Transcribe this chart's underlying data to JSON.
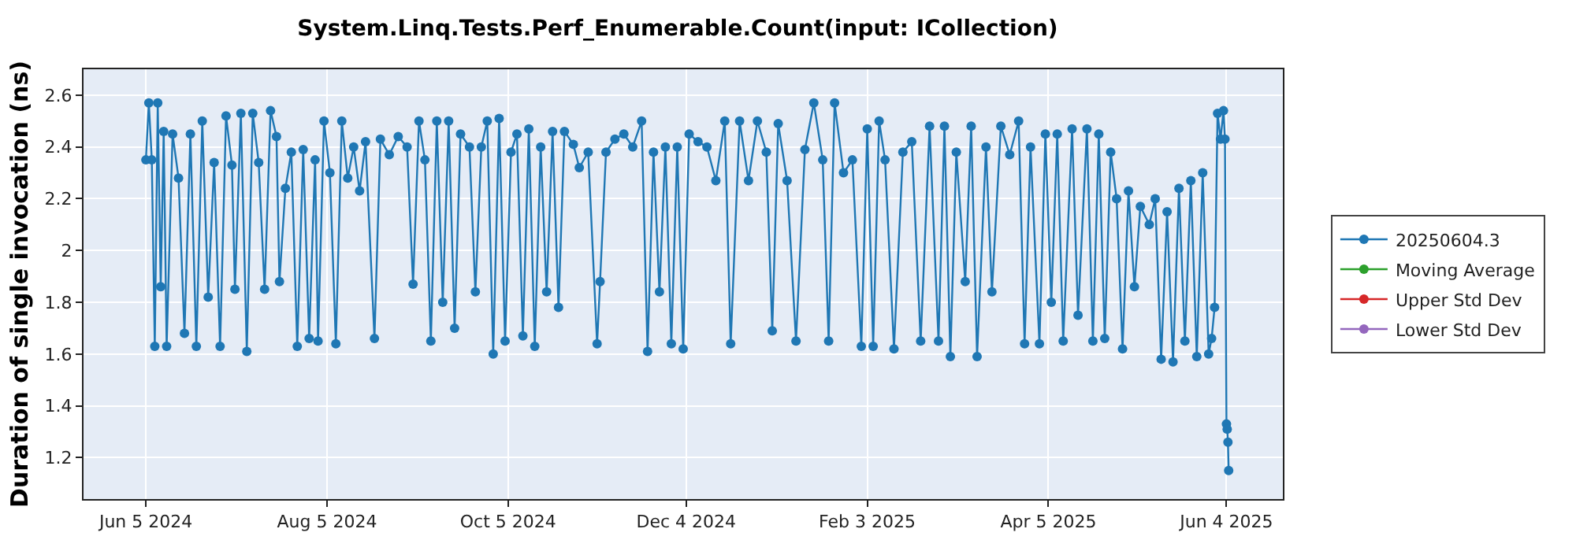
{
  "chart_data": {
    "type": "line",
    "title": "System.Linq.Tests.Perf_Enumerable.Count(input: ICollection)",
    "ylabel": "Duration of single invocation (ns)",
    "x": [
      "2024-06-05",
      "2024-06-06",
      "2024-06-07",
      "2024-06-08",
      "2024-06-09",
      "2024-06-10",
      "2024-06-11",
      "2024-06-12",
      "2024-06-14",
      "2024-06-16",
      "2024-06-18",
      "2024-06-20",
      "2024-06-22",
      "2024-06-24",
      "2024-06-26",
      "2024-06-28",
      "2024-06-30",
      "2024-07-02",
      "2024-07-04",
      "2024-07-05",
      "2024-07-07",
      "2024-07-09",
      "2024-07-11",
      "2024-07-13",
      "2024-07-15",
      "2024-07-17",
      "2024-07-19",
      "2024-07-20",
      "2024-07-22",
      "2024-07-24",
      "2024-07-26",
      "2024-07-28",
      "2024-07-30",
      "2024-08-01",
      "2024-08-02",
      "2024-08-04",
      "2024-08-06",
      "2024-08-08",
      "2024-08-10",
      "2024-08-12",
      "2024-08-14",
      "2024-08-16",
      "2024-08-18",
      "2024-08-21",
      "2024-08-23",
      "2024-08-26",
      "2024-08-29",
      "2024-09-01",
      "2024-09-03",
      "2024-09-05",
      "2024-09-07",
      "2024-09-09",
      "2024-09-11",
      "2024-09-13",
      "2024-09-15",
      "2024-09-17",
      "2024-09-19",
      "2024-09-22",
      "2024-09-24",
      "2024-09-26",
      "2024-09-28",
      "2024-09-30",
      "2024-10-02",
      "2024-10-04",
      "2024-10-06",
      "2024-10-08",
      "2024-10-10",
      "2024-10-12",
      "2024-10-14",
      "2024-10-16",
      "2024-10-18",
      "2024-10-20",
      "2024-10-22",
      "2024-10-24",
      "2024-10-27",
      "2024-10-29",
      "2024-11-01",
      "2024-11-04",
      "2024-11-05",
      "2024-11-07",
      "2024-11-10",
      "2024-11-13",
      "2024-11-16",
      "2024-11-19",
      "2024-11-21",
      "2024-11-23",
      "2024-11-25",
      "2024-11-27",
      "2024-11-29",
      "2024-12-01",
      "2024-12-03",
      "2024-12-05",
      "2024-12-08",
      "2024-12-11",
      "2024-12-14",
      "2024-12-17",
      "2024-12-19",
      "2024-12-22",
      "2024-12-25",
      "2024-12-28",
      "2024-12-31",
      "2025-01-02",
      "2025-01-04",
      "2025-01-07",
      "2025-01-10",
      "2025-01-13",
      "2025-01-16",
      "2025-01-19",
      "2025-01-21",
      "2025-01-23",
      "2025-01-26",
      "2025-01-29",
      "2025-02-01",
      "2025-02-03",
      "2025-02-05",
      "2025-02-07",
      "2025-02-09",
      "2025-02-12",
      "2025-02-15",
      "2025-02-18",
      "2025-02-21",
      "2025-02-24",
      "2025-02-27",
      "2025-03-01",
      "2025-03-03",
      "2025-03-05",
      "2025-03-08",
      "2025-03-10",
      "2025-03-12",
      "2025-03-15",
      "2025-03-17",
      "2025-03-20",
      "2025-03-23",
      "2025-03-26",
      "2025-03-28",
      "2025-03-30",
      "2025-04-02",
      "2025-04-04",
      "2025-04-06",
      "2025-04-08",
      "2025-04-10",
      "2025-04-13",
      "2025-04-15",
      "2025-04-18",
      "2025-04-20",
      "2025-04-22",
      "2025-04-24",
      "2025-04-26",
      "2025-04-28",
      "2025-04-30",
      "2025-05-02",
      "2025-05-04",
      "2025-05-06",
      "2025-05-09",
      "2025-05-11",
      "2025-05-13",
      "2025-05-15",
      "2025-05-17",
      "2025-05-19",
      "2025-05-21",
      "2025-05-23",
      "2025-05-25",
      "2025-05-27",
      "2025-05-29",
      "2025-05-30",
      "2025-05-31",
      "2025-06-01",
      "2025-06-02",
      "2025-06-03",
      "2025-06-03T12:00",
      "2025-06-04",
      "2025-06-04T06:00",
      "2025-06-04T12:00",
      "2025-06-04T18:00"
    ],
    "series": [
      {
        "name": "20250604.3",
        "color": "#1f77b4",
        "values": [
          2.35,
          2.57,
          2.35,
          1.63,
          2.57,
          1.86,
          2.46,
          1.63,
          2.45,
          2.28,
          1.68,
          2.45,
          1.63,
          2.5,
          1.82,
          2.34,
          1.63,
          2.52,
          2.33,
          1.85,
          2.53,
          1.61,
          2.53,
          2.34,
          1.85,
          2.54,
          2.44,
          1.88,
          2.24,
          2.38,
          1.63,
          2.39,
          1.66,
          2.35,
          1.65,
          2.5,
          2.3,
          1.64,
          2.5,
          2.28,
          2.4,
          2.23,
          2.42,
          1.66,
          2.43,
          2.37,
          2.44,
          2.4,
          1.87,
          2.5,
          2.35,
          1.65,
          2.5,
          1.8,
          2.5,
          1.7,
          2.45,
          2.4,
          1.84,
          2.4,
          2.5,
          1.6,
          2.51,
          1.65,
          2.38,
          2.45,
          1.67,
          2.47,
          1.63,
          2.4,
          1.84,
          2.46,
          1.78,
          2.46,
          2.41,
          2.32,
          2.38,
          1.64,
          1.88,
          2.38,
          2.43,
          2.45,
          2.4,
          2.5,
          1.61,
          2.38,
          1.84,
          2.4,
          1.64,
          2.4,
          1.62,
          2.45,
          2.42,
          2.4,
          2.27,
          2.5,
          1.64,
          2.5,
          2.27,
          2.5,
          2.38,
          1.69,
          2.49,
          2.27,
          1.65,
          2.39,
          2.57,
          2.35,
          1.65,
          2.57,
          2.3,
          2.35,
          1.63,
          2.47,
          1.63,
          2.5,
          2.35,
          1.62,
          2.38,
          2.42,
          1.65,
          2.48,
          1.65,
          2.48,
          1.59,
          2.38,
          1.88,
          2.48,
          1.59,
          2.4,
          1.84,
          2.48,
          2.37,
          2.5,
          1.64,
          2.4,
          1.64,
          2.45,
          1.8,
          2.45,
          1.65,
          2.47,
          1.75,
          2.47,
          1.65,
          2.45,
          1.66,
          2.38,
          2.2,
          1.62,
          2.23,
          1.86,
          2.17,
          2.1,
          2.2,
          1.58,
          2.15,
          1.57,
          2.24,
          1.65,
          2.27,
          1.59,
          2.3,
          1.6,
          1.66,
          1.78,
          2.53,
          2.43,
          2.54,
          2.43,
          1.33,
          1.31,
          1.26,
          1.15
        ]
      },
      {
        "name": "Moving Average",
        "color": "#2ca02c",
        "values": [
          null,
          null,
          null,
          null,
          null,
          null,
          null,
          null,
          null,
          null,
          null,
          null,
          null,
          null,
          null,
          null,
          null,
          null,
          null,
          null,
          null,
          null,
          null,
          null,
          null,
          null,
          null,
          null,
          null,
          null,
          null,
          null,
          null,
          null,
          null,
          null,
          null,
          null,
          null,
          null,
          null,
          null,
          null,
          null,
          null,
          null,
          null,
          null,
          null,
          null,
          null,
          null,
          null,
          null,
          null,
          null,
          null,
          null,
          null,
          null,
          null,
          null,
          null,
          null,
          null,
          null,
          null,
          null,
          null,
          null,
          null,
          null,
          null,
          null,
          null,
          null,
          null,
          null,
          null,
          null,
          null,
          null,
          null,
          null,
          null,
          null,
          null,
          null,
          null,
          null,
          null,
          null,
          null,
          null,
          null,
          null,
          null,
          null,
          null,
          null,
          null,
          null,
          null,
          null,
          null,
          null,
          null,
          null,
          null,
          null,
          null,
          null,
          null,
          null,
          null,
          null,
          null,
          null,
          null,
          null,
          null,
          null,
          null,
          null,
          null,
          null,
          null,
          null,
          null,
          null,
          null,
          null,
          null,
          null,
          null,
          null,
          null,
          null,
          null,
          null,
          null,
          null,
          null,
          null,
          null,
          null,
          null,
          null,
          null,
          null,
          null,
          null,
          null,
          null,
          null,
          null,
          null,
          null,
          null,
          null,
          null,
          null,
          null,
          null,
          null,
          null,
          null,
          null,
          null,
          null,
          null,
          null,
          null,
          null
        ]
      },
      {
        "name": "Upper Std Dev",
        "color": "#d62728",
        "values": [
          null,
          null,
          null,
          null,
          null,
          null,
          null,
          null,
          null,
          null,
          null,
          null,
          null,
          null,
          null,
          null,
          null,
          null,
          null,
          null,
          null,
          null,
          null,
          null,
          null,
          null,
          null,
          null,
          null,
          null,
          null,
          null,
          null,
          null,
          null,
          null,
          null,
          null,
          null,
          null,
          null,
          null,
          null,
          null,
          null,
          null,
          null,
          null,
          null,
          null,
          null,
          null,
          null,
          null,
          null,
          null,
          null,
          null,
          null,
          null,
          null,
          null,
          null,
          null,
          null,
          null,
          null,
          null,
          null,
          null,
          null,
          null,
          null,
          null,
          null,
          null,
          null,
          null,
          null,
          null,
          null,
          null,
          null,
          null,
          null,
          null,
          null,
          null,
          null,
          null,
          null,
          null,
          null,
          null,
          null,
          null,
          null,
          null,
          null,
          null,
          null,
          null,
          null,
          null,
          null,
          null,
          null,
          null,
          null,
          null,
          null,
          null,
          null,
          null,
          null,
          null,
          null,
          null,
          null,
          null,
          null,
          null,
          null,
          null,
          null,
          null,
          null,
          null,
          null,
          null,
          null,
          null,
          null,
          null,
          null,
          null,
          null,
          null,
          null,
          null,
          null,
          null,
          null,
          null,
          null,
          null,
          null,
          null,
          null,
          null,
          null,
          null,
          null,
          null,
          null,
          null,
          null,
          null,
          null,
          null,
          null,
          null,
          null,
          null,
          null,
          null,
          null,
          null,
          null,
          null,
          null,
          null,
          null,
          null
        ]
      },
      {
        "name": "Lower Std Dev",
        "color": "#9467bd",
        "values": [
          null,
          null,
          null,
          null,
          null,
          null,
          null,
          null,
          null,
          null,
          null,
          null,
          null,
          null,
          null,
          null,
          null,
          null,
          null,
          null,
          null,
          null,
          null,
          null,
          null,
          null,
          null,
          null,
          null,
          null,
          null,
          null,
          null,
          null,
          null,
          null,
          null,
          null,
          null,
          null,
          null,
          null,
          null,
          null,
          null,
          null,
          null,
          null,
          null,
          null,
          null,
          null,
          null,
          null,
          null,
          null,
          null,
          null,
          null,
          null,
          null,
          null,
          null,
          null,
          null,
          null,
          null,
          null,
          null,
          null,
          null,
          null,
          null,
          null,
          null,
          null,
          null,
          null,
          null,
          null,
          null,
          null,
          null,
          null,
          null,
          null,
          null,
          null,
          null,
          null,
          null,
          null,
          null,
          null,
          null,
          null,
          null,
          null,
          null,
          null,
          null,
          null,
          null,
          null,
          null,
          null,
          null,
          null,
          null,
          null,
          null,
          null,
          null,
          null,
          null,
          null,
          null,
          null,
          null,
          null,
          null,
          null,
          null,
          null,
          null,
          null,
          null,
          null,
          null,
          null,
          null,
          null,
          null,
          null,
          null,
          null,
          null,
          null,
          null,
          null,
          null,
          null,
          null,
          null,
          null,
          null,
          null,
          null,
          null,
          null,
          null,
          null,
          null,
          null,
          null,
          null,
          null,
          null,
          null,
          null,
          null,
          null,
          null,
          null,
          null,
          null,
          null,
          null,
          null,
          null,
          null,
          null,
          null,
          null
        ]
      }
    ],
    "xlim": [
      "2024-05-15",
      "2025-06-23"
    ],
    "xticks": [
      {
        "value": "2024-06-05",
        "label": "Jun 5 2024"
      },
      {
        "value": "2024-08-05",
        "label": "Aug 5 2024"
      },
      {
        "value": "2024-10-05",
        "label": "Oct 5 2024"
      },
      {
        "value": "2024-12-04",
        "label": "Dec 4 2024"
      },
      {
        "value": "2025-02-03",
        "label": "Feb 3 2025"
      },
      {
        "value": "2025-04-05",
        "label": "Apr 5 2025"
      },
      {
        "value": "2025-06-04",
        "label": "Jun 4 2025"
      }
    ],
    "ylim": [
      1.04,
      2.7
    ],
    "yticks": [
      {
        "value": 1.2,
        "label": "1.2"
      },
      {
        "value": 1.4,
        "label": "1.4"
      },
      {
        "value": 1.6,
        "label": "1.6"
      },
      {
        "value": 1.8,
        "label": "1.8"
      },
      {
        "value": 2,
        "label": "2"
      },
      {
        "value": 2.2,
        "label": "2.2"
      },
      {
        "value": 2.4,
        "label": "2.4"
      },
      {
        "value": 2.6,
        "label": "2.6"
      }
    ],
    "grid": true,
    "legend": "right",
    "marker": "circle",
    "line_style": "solid"
  }
}
